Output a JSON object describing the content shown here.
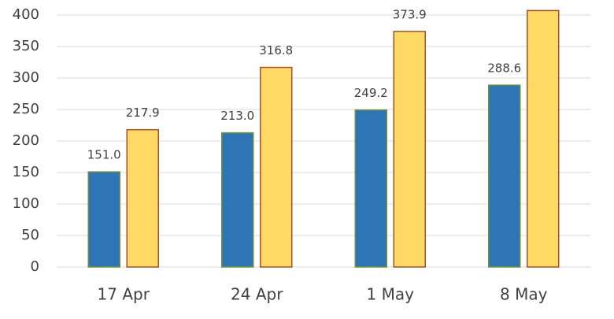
{
  "chart_data": {
    "type": "bar",
    "categories": [
      "17 Apr",
      "24 Apr",
      "1 May",
      "8 May"
    ],
    "series": [
      {
        "color": "#2e75b6",
        "edgecolor": "#70913a",
        "values": [
          151.0,
          213.0,
          249.2,
          288.6
        ],
        "value_labels": [
          "151.0",
          "213.0",
          "249.2",
          "288.6"
        ]
      },
      {
        "color": "#ffd966",
        "edgecolor": "#a0522d",
        "values": [
          217.9,
          316.8,
          373.9,
          407
        ],
        "value_labels": [
          "217.9",
          "316.8",
          "373.9",
          null
        ]
      }
    ],
    "ylim": [
      0,
      400
    ],
    "yticks": [
      0,
      50,
      100,
      150,
      200,
      250,
      300,
      350,
      400
    ],
    "grid": true
  }
}
